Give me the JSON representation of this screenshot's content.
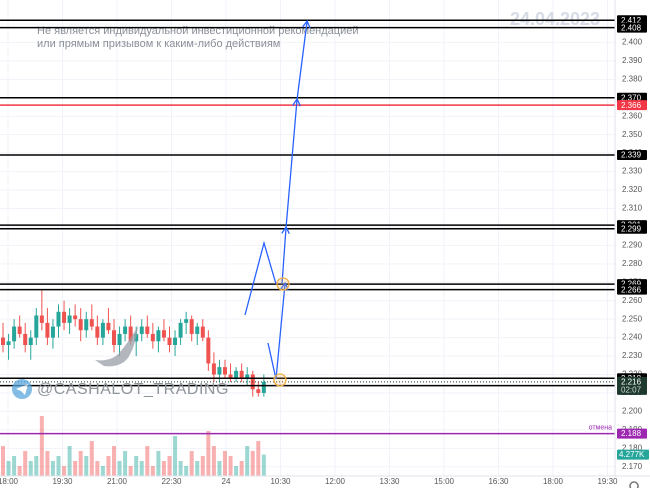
{
  "chart_data": {
    "type": "candlestick",
    "date_watermark": "24.04.2023",
    "disclaimer": [
      "Не является индивидуальной инвестиционной рекомендацией",
      "или прямым призывом к каким-либо действиям"
    ],
    "brand": "@CASHALOT_TRADING",
    "x_labels": [
      "18:00",
      "19:30",
      "21:00",
      "22:30",
      "24",
      "10:30",
      "12:00",
      "13:30",
      "15:00",
      "16:30",
      "18:00",
      "19:30"
    ],
    "ylim": [
      2.165,
      2.423
    ],
    "yticks": [
      {
        "value": 2.17,
        "label": "2.170"
      },
      {
        "value": 2.18,
        "label": "2.180"
      },
      {
        "value": 2.19,
        "label": "2.190"
      },
      {
        "value": 2.2,
        "label": "2.200"
      },
      {
        "value": 2.21,
        "label": "2.210"
      },
      {
        "value": 2.22,
        "label": "2.220"
      },
      {
        "value": 2.23,
        "label": "2.230"
      },
      {
        "value": 2.24,
        "label": "2.240"
      },
      {
        "value": 2.25,
        "label": "2.250"
      },
      {
        "value": 2.26,
        "label": "2.260"
      },
      {
        "value": 2.27,
        "label": "2.270"
      },
      {
        "value": 2.28,
        "label": "2.280"
      },
      {
        "value": 2.29,
        "label": "2.290"
      },
      {
        "value": 2.3,
        "label": "2.300"
      },
      {
        "value": 2.31,
        "label": "2.310"
      },
      {
        "value": 2.32,
        "label": "2.320"
      },
      {
        "value": 2.33,
        "label": "2.330"
      },
      {
        "value": 2.34,
        "label": "2.340"
      },
      {
        "value": 2.35,
        "label": "2.350"
      },
      {
        "value": 2.36,
        "label": "2.360"
      },
      {
        "value": 2.37,
        "label": "2.370"
      },
      {
        "value": 2.38,
        "label": "2.380"
      },
      {
        "value": 2.39,
        "label": "2.390"
      },
      {
        "value": 2.4,
        "label": "2.400"
      },
      {
        "value": 2.41,
        "label": "2.410"
      }
    ],
    "grid": true,
    "colors": {
      "up": "#26a69a",
      "down": "#ef5350"
    },
    "candles": {
      "open": [
        2.24,
        2.236,
        2.238,
        2.246,
        2.242,
        2.236,
        2.24,
        2.252,
        2.248,
        2.24,
        2.246,
        2.254,
        2.248,
        2.252,
        2.25,
        2.244,
        2.25,
        2.246,
        2.24,
        2.248,
        2.244,
        2.236,
        2.242,
        2.246,
        2.238,
        2.242,
        2.246,
        2.242,
        2.238,
        2.244,
        2.24,
        2.236,
        2.24,
        2.248,
        2.25,
        2.242,
        2.246,
        2.24,
        2.226,
        2.22,
        2.224,
        2.22,
        2.218,
        2.222,
        2.218,
        2.22,
        2.212,
        2.21
      ],
      "high": [
        2.248,
        2.242,
        2.25,
        2.252,
        2.248,
        2.244,
        2.256,
        2.266,
        2.256,
        2.25,
        2.258,
        2.26,
        2.256,
        2.258,
        2.256,
        2.254,
        2.258,
        2.252,
        2.25,
        2.256,
        2.25,
        2.246,
        2.25,
        2.252,
        2.246,
        2.25,
        2.252,
        2.248,
        2.246,
        2.25,
        2.246,
        2.244,
        2.25,
        2.254,
        2.252,
        2.248,
        2.25,
        2.244,
        2.232,
        2.228,
        2.228,
        2.226,
        2.224,
        2.226,
        2.224,
        2.222,
        2.216,
        2.22
      ],
      "low": [
        2.232,
        2.228,
        2.234,
        2.24,
        2.232,
        2.228,
        2.236,
        2.244,
        2.236,
        2.234,
        2.24,
        2.244,
        2.242,
        2.246,
        2.238,
        2.24,
        2.244,
        2.236,
        2.236,
        2.242,
        2.232,
        2.23,
        2.238,
        2.236,
        2.23,
        2.238,
        2.24,
        2.234,
        2.232,
        2.238,
        2.232,
        2.23,
        2.236,
        2.242,
        2.238,
        2.236,
        2.238,
        2.222,
        2.216,
        2.216,
        2.218,
        2.216,
        2.216,
        2.216,
        2.214,
        2.208,
        2.208,
        2.208
      ],
      "close": [
        2.236,
        2.238,
        2.246,
        2.242,
        2.236,
        2.24,
        2.252,
        2.248,
        2.24,
        2.246,
        2.254,
        2.248,
        2.252,
        2.25,
        2.244,
        2.25,
        2.246,
        2.24,
        2.248,
        2.244,
        2.236,
        2.242,
        2.246,
        2.238,
        2.242,
        2.246,
        2.242,
        2.238,
        2.244,
        2.24,
        2.236,
        2.24,
        2.248,
        2.25,
        2.242,
        2.246,
        2.24,
        2.226,
        2.22,
        2.224,
        2.22,
        2.218,
        2.222,
        2.218,
        2.22,
        2.212,
        2.21,
        2.216
      ]
    },
    "volume": {
      "values": [
        6,
        3,
        4,
        2,
        5,
        3,
        4,
        12,
        5,
        3,
        4,
        2,
        6,
        3,
        5,
        4,
        7,
        3,
        2,
        4,
        6,
        3,
        5,
        2,
        4,
        3,
        6,
        2,
        5,
        3,
        4,
        8,
        3,
        2,
        5,
        3,
        4,
        9,
        6,
        3,
        5,
        4,
        2,
        3,
        6,
        5,
        7,
        4.277
      ],
      "lim": [
        0,
        14
      ]
    },
    "current_volume": {
      "value": 4.277,
      "label": "4.277K",
      "color": "#26a69a"
    },
    "levels": [
      {
        "value": 2.412,
        "label": "2.412",
        "color": "#000000"
      },
      {
        "value": 2.408,
        "label": "2.408",
        "color": "#000000"
      },
      {
        "value": 2.37,
        "label": "2.370",
        "color": "#000000"
      },
      {
        "value": 2.366,
        "label": "2.366",
        "color": "#f23645"
      },
      {
        "value": 2.339,
        "label": "2.339",
        "color": "#000000"
      },
      {
        "value": 2.301,
        "label": "2.301",
        "color": "#000000"
      },
      {
        "value": 2.299,
        "label": "2.299",
        "color": "#000000"
      },
      {
        "value": 2.269,
        "label": "2.269",
        "color": "#000000"
      },
      {
        "value": 2.266,
        "label": "2.266",
        "color": "#000000"
      },
      {
        "value": 2.218,
        "label": "2.218",
        "color": "#000000"
      },
      {
        "value": 2.214,
        "label": "2.214",
        "color": "#000000"
      },
      {
        "value": 2.188,
        "label": "2.188",
        "color": "#9c27b0",
        "note": "отмена"
      }
    ],
    "current_price": {
      "value": 2.216,
      "label": "2.216",
      "timer": "02:07",
      "color": "#1e3a2f"
    }
  }
}
